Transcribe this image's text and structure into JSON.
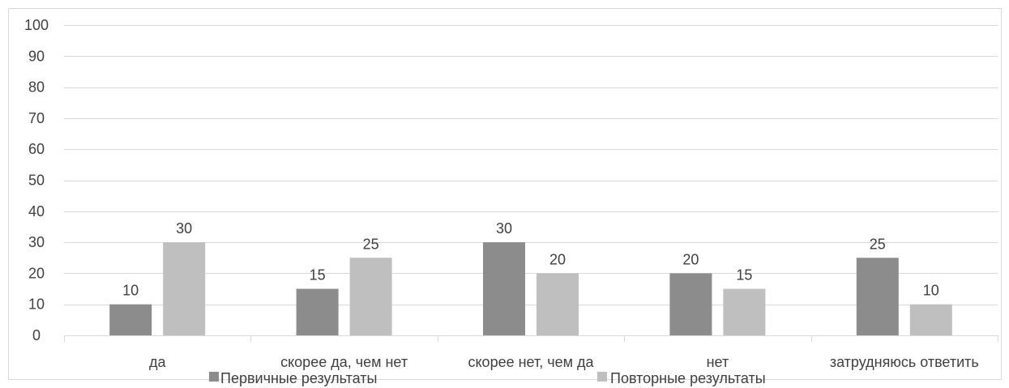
{
  "chart_data": {
    "type": "bar",
    "title": "",
    "xlabel": "",
    "ylabel": "",
    "ylim": [
      0,
      100
    ],
    "yticks": [
      0,
      10,
      20,
      30,
      40,
      50,
      60,
      70,
      80,
      90,
      100
    ],
    "categories": [
      "да",
      "скорее да, чем нет",
      "скорее нет, чем да",
      "нет",
      "затрудняюсь ответить"
    ],
    "series": [
      {
        "name": "Первичные результаты",
        "color": "#8c8c8c",
        "values": [
          10,
          15,
          30,
          20,
          25
        ]
      },
      {
        "name": "Повторные результаты",
        "color": "#bfbfbf",
        "values": [
          30,
          25,
          20,
          15,
          10
        ]
      }
    ],
    "grid": true,
    "legend_position": "bottom",
    "data_labels": true
  }
}
